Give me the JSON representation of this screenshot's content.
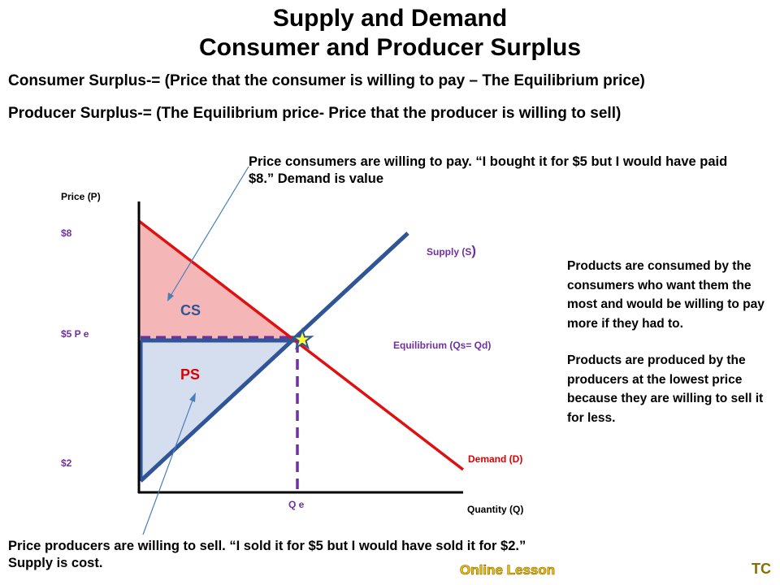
{
  "title": {
    "line1": "Supply and Demand",
    "line2": "Consumer and Producer Surplus"
  },
  "definitions": {
    "consumer": "Consumer Surplus-= (Price that the consumer is willing to pay – The Equilibrium price)",
    "producer": "Producer Surplus-= (The Equilibrium price- Price that the producer is willing to sell)"
  },
  "notes": {
    "top": "Price consumers are willing to pay.  “I bought it for $5 but I would have paid $8.”  Demand is value",
    "bottom": "Price producers are willing to sell.  “I sold it for $5 but I would have sold it for $2.” Supply is cost.",
    "side1": "Products are consumed by the consumers who want them the most and would be willing to pay more if they had to.",
    "side2": "Products are  produced by the producers at the lowest price because they are willing to sell it for less."
  },
  "graph": {
    "y_axis_label": "Price (P)",
    "x_axis_label": "Quantity (Q)",
    "price_8": "$8",
    "price_5": "$5 P e",
    "price_2": "$2",
    "qe": "Q e",
    "supply_label": "Supply (S",
    "supply_paren": ")",
    "demand_label": "Demand (D)",
    "equilibrium_label": "Equilibrium (Qs= Qd)",
    "cs_label": "CS",
    "ps_label": "PS",
    "colors": {
      "demand": "#e01010",
      "supply": "#2f5597",
      "cs_fill": "#f4b6b6",
      "ps_fill": "#d5deee",
      "equilibrium_dash": "#7030a0",
      "star": "#ffff33"
    }
  },
  "footer": {
    "online_lesson": "Online Lesson",
    "tc": "TC"
  }
}
